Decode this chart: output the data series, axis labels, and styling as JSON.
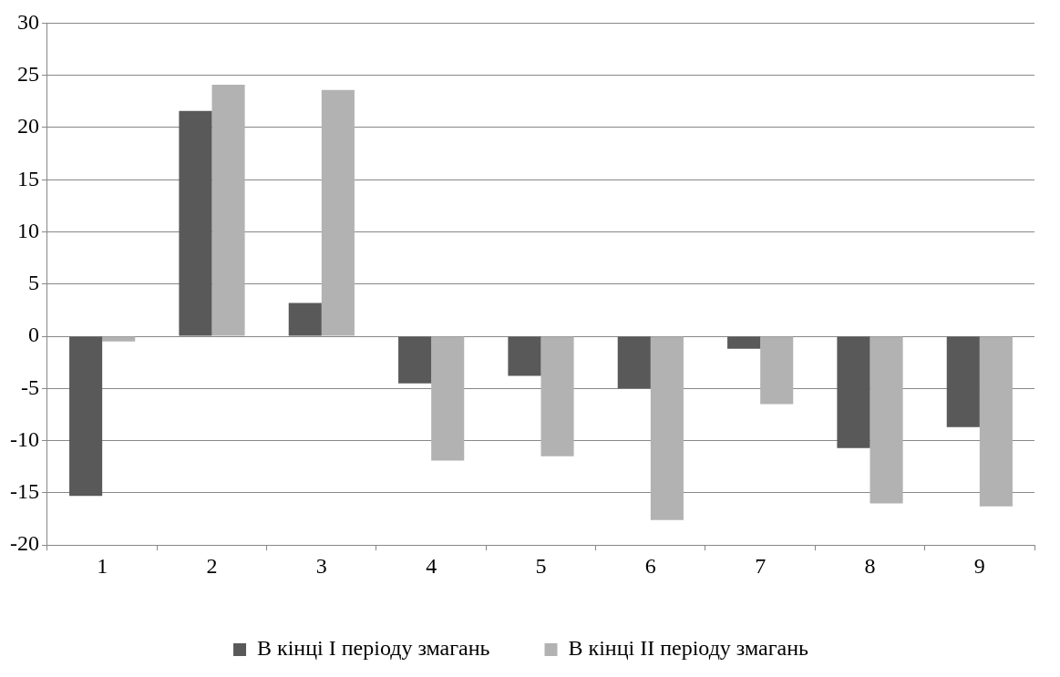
{
  "chart_data": {
    "type": "bar",
    "categories": [
      "1",
      "2",
      "3",
      "4",
      "5",
      "6",
      "7",
      "8",
      "9"
    ],
    "series": [
      {
        "name": "В кінці I періоду змагань",
        "color": "#595959",
        "values": [
          -15.3,
          21.6,
          3.2,
          -4.5,
          -3.8,
          -5.0,
          -1.2,
          -10.7,
          -8.7
        ]
      },
      {
        "name": "В кінці II періоду змагань",
        "color": "#b2b2b2",
        "values": [
          -0.5,
          24.1,
          23.6,
          -11.9,
          -11.5,
          -17.6,
          -6.5,
          -16.0,
          -16.3
        ]
      }
    ],
    "ylim": [
      -20,
      30
    ],
    "yticks": [
      -20,
      -15,
      -10,
      -5,
      0,
      5,
      10,
      15,
      20,
      25,
      30
    ],
    "grid": "y",
    "legend": "bottom"
  }
}
